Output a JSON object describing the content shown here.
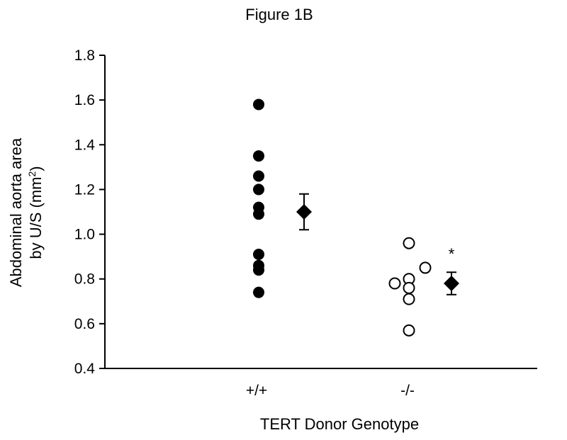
{
  "chart_data": {
    "type": "scatter",
    "title": "Figure 1B",
    "xlabel": "TERT Donor Genotype",
    "ylabel_line1": "Abdominal aorta area",
    "ylabel_line2_prefix": "by U/S (mm",
    "ylabel_line2_sup": "2",
    "ylabel_line2_suffix": ")",
    "ylim": [
      0.4,
      1.8
    ],
    "yticks": [
      0.4,
      0.6,
      0.8,
      1.0,
      1.2,
      1.4,
      1.6,
      1.8
    ],
    "ytick_labels": [
      "0.4",
      "0.6",
      "0.8",
      "1.0",
      "1.2",
      "1.4",
      "1.6",
      "1.8"
    ],
    "categories": [
      "+/+",
      "-/-"
    ],
    "grid": false,
    "series": [
      {
        "category": "+/+",
        "marker": "filled-circle",
        "values": [
          1.58,
          1.35,
          1.26,
          1.2,
          1.12,
          1.09,
          0.91,
          0.86,
          0.84,
          0.74
        ]
      },
      {
        "category": "-/-",
        "marker": "open-circle",
        "values": [
          0.96,
          0.85,
          0.8,
          0.78,
          0.76,
          0.71,
          0.57
        ]
      }
    ],
    "means": [
      {
        "category": "+/+",
        "mean": 1.1,
        "error_low": 1.02,
        "error_high": 1.18,
        "annotation": ""
      },
      {
        "category": "-/-",
        "mean": 0.78,
        "error_low": 0.73,
        "error_high": 0.83,
        "annotation": "*"
      }
    ],
    "colors": {
      "marker": "#000000",
      "background": "#ffffff"
    }
  }
}
